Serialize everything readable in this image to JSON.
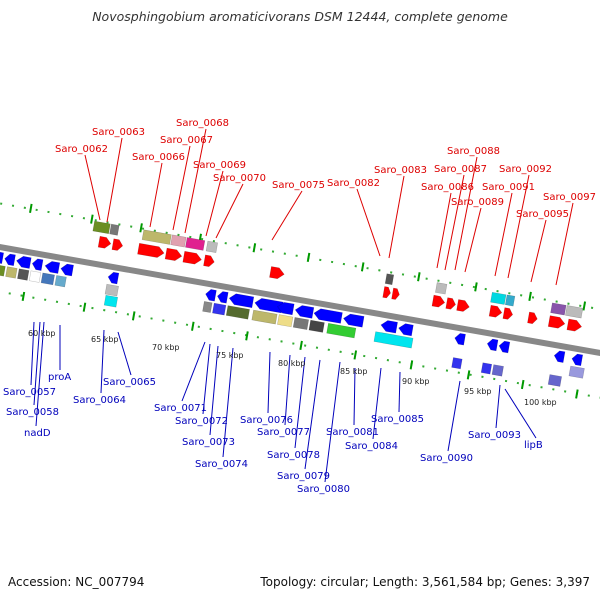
{
  "title": "Novosphingobium aromaticivorans DSM 12444, complete genome",
  "footer": {
    "accession": "Accession: NC_007794",
    "summary": "Topology: circular; Length: 3,561,584 bp; Genes: 3,397"
  },
  "colors": {
    "top_label": "#dd0000",
    "bottom_label": "#0000bb",
    "forward_gene": "#ff0000",
    "reverse_gene": "#0000ff",
    "tick_major": "#009900",
    "tick_minor": "#33aa33",
    "backbone": "#888888"
  },
  "scale_labels": [
    "60 kbp",
    "65 kbp",
    "70 kbp",
    "75 kbp",
    "80 kbp",
    "85 kbp",
    "90 kbp",
    "95 kbp",
    "100 kbp"
  ],
  "top_genes": [
    "Saro_0062",
    "Saro_0063",
    "Saro_0066",
    "Saro_0067",
    "Saro_0068",
    "Saro_0069",
    "Saro_0070",
    "Saro_0075",
    "Saro_0082",
    "Saro_0083",
    "Saro_0086",
    "Saro_0087",
    "Saro_0088",
    "Saro_0089",
    "Saro_0091",
    "Saro_0092",
    "Saro_0095",
    "Saro_0097"
  ],
  "bottom_genes": [
    "Saro_0057",
    "Saro_0058",
    "nadD",
    "proA",
    "Saro_0064",
    "Saro_0065",
    "Saro_0071",
    "Saro_0072",
    "Saro_0073",
    "Saro_0074",
    "Saro_0076",
    "Saro_0077",
    "Saro_0078",
    "Saro_0079",
    "Saro_0080",
    "Saro_0081",
    "Saro_0084",
    "Saro_0085",
    "Saro_0090",
    "Saro_0093",
    "lipB"
  ]
}
